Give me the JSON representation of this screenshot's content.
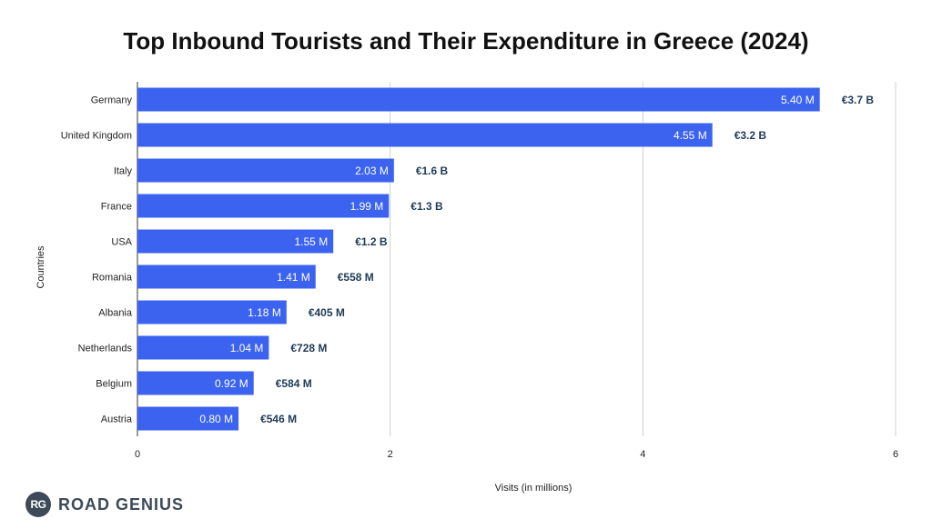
{
  "chart_data": {
    "type": "bar",
    "orientation": "horizontal",
    "title": "Top Inbound Tourists and Their Expenditure in Greece (2024)",
    "xlabel": "Visits (in millions)",
    "ylabel": "Countries",
    "xlim": [
      0,
      6
    ],
    "xticks": [
      "0",
      "2",
      "4",
      "6"
    ],
    "grid": true,
    "categories": [
      "Germany",
      "United Kingdom",
      "Italy",
      "France",
      "USA",
      "Romania",
      "Albania",
      "Netherlands",
      "Belgium",
      "Austria"
    ],
    "series": [
      {
        "values": [
          5.4,
          4.55,
          2.03,
          1.99,
          1.55,
          1.41,
          1.18,
          1.04,
          0.92,
          0.8
        ],
        "labels": [
          "5.40 M",
          "4.55 M",
          "2.03 M",
          "1.99 M",
          "1.55 M",
          "1.41 M",
          "1.18 M",
          "1.04 M",
          "0.92 M",
          "0.80 M"
        ],
        "color": "#3b63f0"
      }
    ],
    "expenditure_labels": [
      "€3.7 B",
      "€3.2 B",
      "€1.6 B",
      "€1.3 B",
      "€1.2 B",
      "€558 M",
      "€405 M",
      "€728 M",
      "€584 M",
      "€546 M"
    ],
    "expenditure_color": "#1f3b57"
  },
  "logo": {
    "badge": "RG",
    "text": "ROAD GENIUS"
  }
}
